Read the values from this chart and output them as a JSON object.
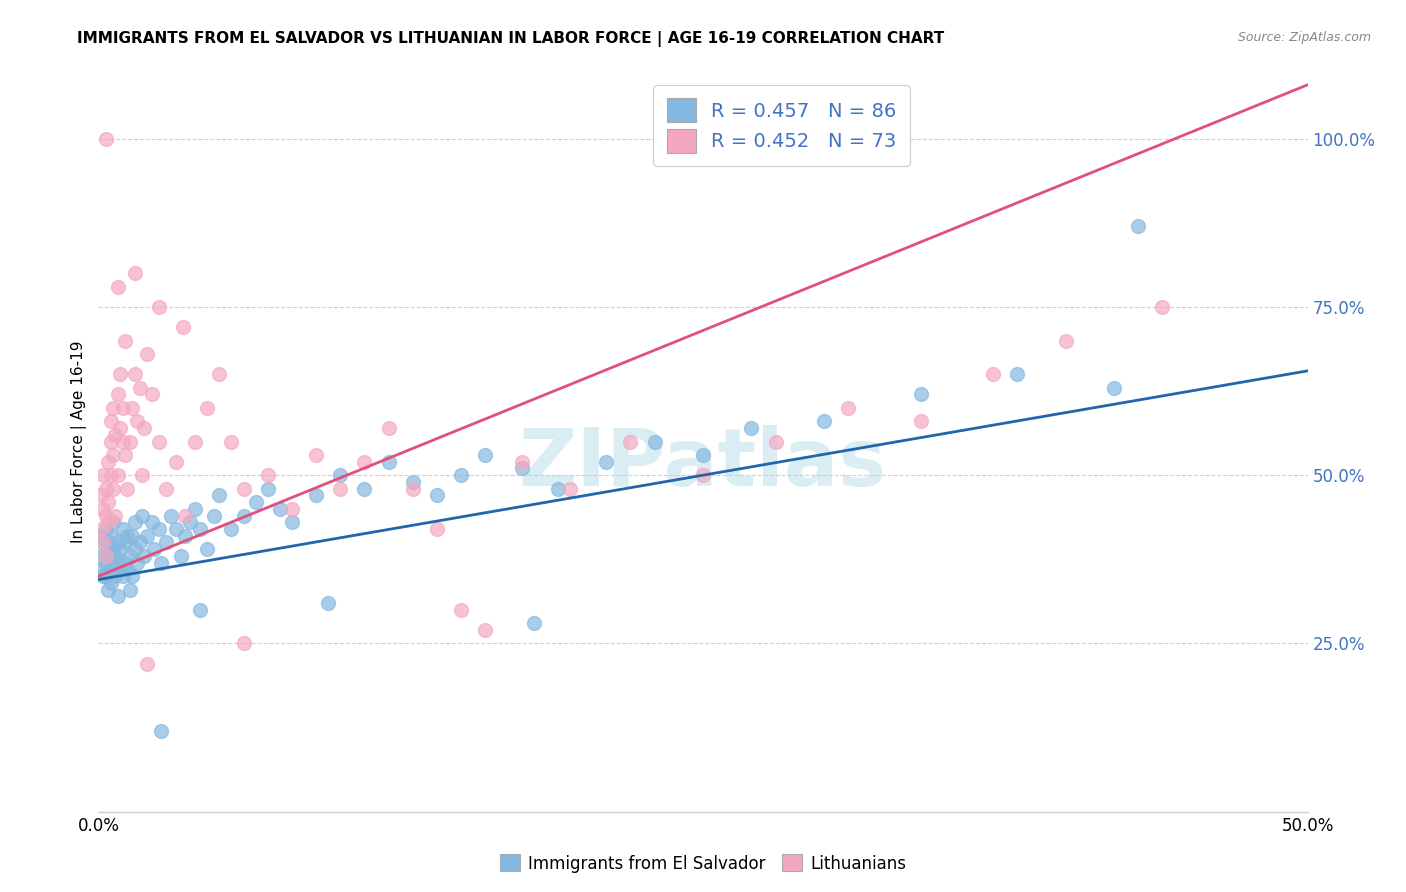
{
  "title": "IMMIGRANTS FROM EL SALVADOR VS LITHUANIAN IN LABOR FORCE | AGE 16-19 CORRELATION CHART",
  "source": "Source: ZipAtlas.com",
  "ylabel": "In Labor Force | Age 16-19",
  "xlim": [
    0.0,
    0.5
  ],
  "ylim": [
    0.0,
    1.1
  ],
  "x_tick_vals": [
    0.0,
    0.5
  ],
  "x_tick_labels": [
    "0.0%",
    "50.0%"
  ],
  "y_tick_vals": [
    0.0,
    0.25,
    0.5,
    0.75,
    1.0
  ],
  "y_tick_labels_right": [
    "",
    "25.0%",
    "50.0%",
    "75.0%",
    "100.0%"
  ],
  "blue_R": 0.457,
  "blue_N": 86,
  "pink_R": 0.452,
  "pink_N": 73,
  "blue_color": "#85b8e0",
  "pink_color": "#f4a8c0",
  "blue_line_color": "#2166ac",
  "pink_line_color": "#e0507a",
  "legend_blue_label": "Immigrants from El Salvador",
  "legend_pink_label": "Lithuanians",
  "watermark": "ZIPatlas",
  "watermark_color": "#add8e6",
  "blue_line_x": [
    0.0,
    0.5
  ],
  "blue_line_y": [
    0.345,
    0.655
  ],
  "pink_line_x": [
    0.0,
    0.5
  ],
  "pink_line_y": [
    0.35,
    1.08
  ],
  "blue_scatter_x": [
    0.001,
    0.001,
    0.002,
    0.002,
    0.002,
    0.003,
    0.003,
    0.003,
    0.003,
    0.004,
    0.004,
    0.004,
    0.005,
    0.005,
    0.005,
    0.006,
    0.006,
    0.006,
    0.007,
    0.007,
    0.008,
    0.008,
    0.008,
    0.009,
    0.009,
    0.01,
    0.01,
    0.011,
    0.011,
    0.012,
    0.012,
    0.013,
    0.013,
    0.014,
    0.014,
    0.015,
    0.015,
    0.016,
    0.017,
    0.018,
    0.019,
    0.02,
    0.022,
    0.023,
    0.025,
    0.026,
    0.028,
    0.03,
    0.032,
    0.034,
    0.036,
    0.038,
    0.04,
    0.042,
    0.045,
    0.048,
    0.05,
    0.055,
    0.06,
    0.065,
    0.07,
    0.075,
    0.08,
    0.09,
    0.1,
    0.11,
    0.12,
    0.13,
    0.14,
    0.15,
    0.16,
    0.175,
    0.19,
    0.21,
    0.23,
    0.25,
    0.27,
    0.3,
    0.34,
    0.38,
    0.42,
    0.43,
    0.18,
    0.095,
    0.042,
    0.026
  ],
  "blue_scatter_y": [
    0.38,
    0.41,
    0.36,
    0.4,
    0.35,
    0.38,
    0.37,
    0.42,
    0.35,
    0.4,
    0.38,
    0.33,
    0.37,
    0.41,
    0.34,
    0.39,
    0.36,
    0.43,
    0.38,
    0.35,
    0.4,
    0.37,
    0.32,
    0.39,
    0.36,
    0.42,
    0.35,
    0.4,
    0.37,
    0.41,
    0.36,
    0.38,
    0.33,
    0.41,
    0.35,
    0.39,
    0.43,
    0.37,
    0.4,
    0.44,
    0.38,
    0.41,
    0.43,
    0.39,
    0.42,
    0.37,
    0.4,
    0.44,
    0.42,
    0.38,
    0.41,
    0.43,
    0.45,
    0.42,
    0.39,
    0.44,
    0.47,
    0.42,
    0.44,
    0.46,
    0.48,
    0.45,
    0.43,
    0.47,
    0.5,
    0.48,
    0.52,
    0.49,
    0.47,
    0.5,
    0.53,
    0.51,
    0.48,
    0.52,
    0.55,
    0.53,
    0.57,
    0.58,
    0.62,
    0.65,
    0.63,
    0.87,
    0.28,
    0.31,
    0.3,
    0.12
  ],
  "pink_scatter_x": [
    0.001,
    0.001,
    0.002,
    0.002,
    0.002,
    0.003,
    0.003,
    0.003,
    0.004,
    0.004,
    0.004,
    0.005,
    0.005,
    0.005,
    0.006,
    0.006,
    0.006,
    0.007,
    0.007,
    0.008,
    0.008,
    0.009,
    0.009,
    0.01,
    0.01,
    0.011,
    0.011,
    0.012,
    0.013,
    0.014,
    0.015,
    0.016,
    0.017,
    0.018,
    0.019,
    0.02,
    0.022,
    0.025,
    0.028,
    0.032,
    0.036,
    0.04,
    0.045,
    0.05,
    0.055,
    0.06,
    0.07,
    0.08,
    0.09,
    0.1,
    0.11,
    0.12,
    0.13,
    0.14,
    0.15,
    0.16,
    0.175,
    0.195,
    0.22,
    0.25,
    0.28,
    0.31,
    0.34,
    0.37,
    0.4,
    0.44,
    0.003,
    0.008,
    0.015,
    0.025,
    0.035,
    0.02,
    0.06
  ],
  "pink_scatter_y": [
    0.42,
    0.47,
    0.45,
    0.5,
    0.4,
    0.44,
    0.48,
    0.38,
    0.52,
    0.46,
    0.43,
    0.55,
    0.5,
    0.58,
    0.48,
    0.53,
    0.6,
    0.56,
    0.44,
    0.62,
    0.5,
    0.57,
    0.65,
    0.55,
    0.6,
    0.7,
    0.53,
    0.48,
    0.55,
    0.6,
    0.65,
    0.58,
    0.63,
    0.5,
    0.57,
    0.68,
    0.62,
    0.55,
    0.48,
    0.52,
    0.44,
    0.55,
    0.6,
    0.65,
    0.55,
    0.48,
    0.5,
    0.45,
    0.53,
    0.48,
    0.52,
    0.57,
    0.48,
    0.42,
    0.3,
    0.27,
    0.52,
    0.48,
    0.55,
    0.5,
    0.55,
    0.6,
    0.58,
    0.65,
    0.7,
    0.75,
    1.0,
    0.78,
    0.8,
    0.75,
    0.72,
    0.22,
    0.25
  ]
}
